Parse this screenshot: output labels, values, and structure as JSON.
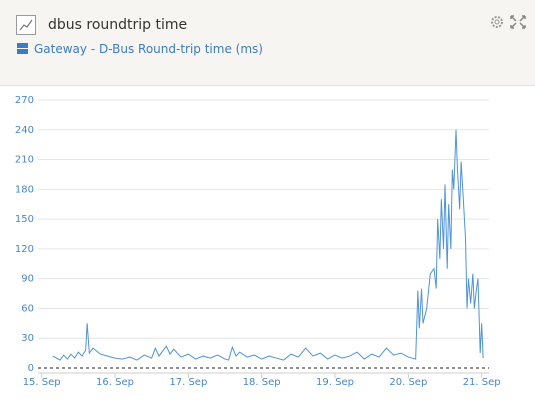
{
  "chart_data": {
    "type": "line",
    "title": "dbus roundtrip time",
    "subtitle": "Gateway - D-Bus Round-trip time (ms)",
    "x": [
      15.15,
      15.2,
      15.25,
      15.3,
      15.35,
      15.4,
      15.45,
      15.5,
      15.55,
      15.6,
      15.62,
      15.65,
      15.7,
      15.75,
      15.8,
      15.9,
      16.0,
      16.1,
      16.2,
      16.3,
      16.4,
      16.5,
      16.55,
      16.6,
      16.7,
      16.75,
      16.8,
      16.9,
      17.0,
      17.1,
      17.2,
      17.3,
      17.4,
      17.5,
      17.55,
      17.6,
      17.65,
      17.7,
      17.8,
      17.9,
      18.0,
      18.1,
      18.2,
      18.3,
      18.4,
      18.5,
      18.6,
      18.7,
      18.8,
      18.9,
      19.0,
      19.1,
      19.2,
      19.3,
      19.4,
      19.5,
      19.6,
      19.7,
      19.8,
      19.9,
      20.0,
      20.1,
      20.13,
      20.15,
      20.18,
      20.2,
      20.25,
      20.3,
      20.35,
      20.38,
      20.4,
      20.43,
      20.45,
      20.48,
      20.5,
      20.53,
      20.55,
      20.58,
      20.6,
      20.62,
      20.65,
      20.67,
      20.7,
      20.72,
      20.75,
      20.78,
      20.8,
      20.82,
      20.85,
      20.88,
      20.9,
      20.93,
      20.95,
      20.98,
      21.0,
      21.02
    ],
    "series": [
      {
        "color": "#4f94d4",
        "values": [
          12,
          10,
          8,
          13,
          9,
          14,
          10,
          16,
          12,
          18,
          45,
          15,
          20,
          17,
          14,
          12,
          10,
          9,
          11,
          8,
          13,
          10,
          20,
          12,
          22,
          14,
          19,
          11,
          14,
          9,
          12,
          10,
          13,
          9,
          8,
          21,
          12,
          16,
          11,
          13,
          9,
          12,
          10,
          8,
          14,
          11,
          20,
          12,
          15,
          9,
          13,
          10,
          12,
          16,
          9,
          14,
          11,
          20,
          13,
          15,
          11,
          9,
          78,
          40,
          80,
          45,
          60,
          95,
          100,
          80,
          150,
          110,
          170,
          120,
          185,
          100,
          165,
          120,
          200,
          180,
          240,
          200,
          160,
          208,
          170,
          130,
          60,
          90,
          65,
          95,
          60,
          80,
          90,
          15,
          45,
          10
        ]
      }
    ],
    "xlim": [
      14.95,
      21.1
    ],
    "xticks": [
      {
        "value": 15,
        "label": "15. Sep"
      },
      {
        "value": 16,
        "label": "16. Sep"
      },
      {
        "value": 17,
        "label": "17. Sep"
      },
      {
        "value": 18,
        "label": "18. Sep"
      },
      {
        "value": 19,
        "label": "19. Sep"
      },
      {
        "value": 20,
        "label": "20. Sep"
      },
      {
        "value": 21,
        "label": "21. Sep"
      }
    ],
    "ylim": [
      0,
      270
    ],
    "yticks": [
      0,
      30,
      60,
      90,
      120,
      150,
      180,
      210,
      240,
      270
    ],
    "grid": true
  }
}
